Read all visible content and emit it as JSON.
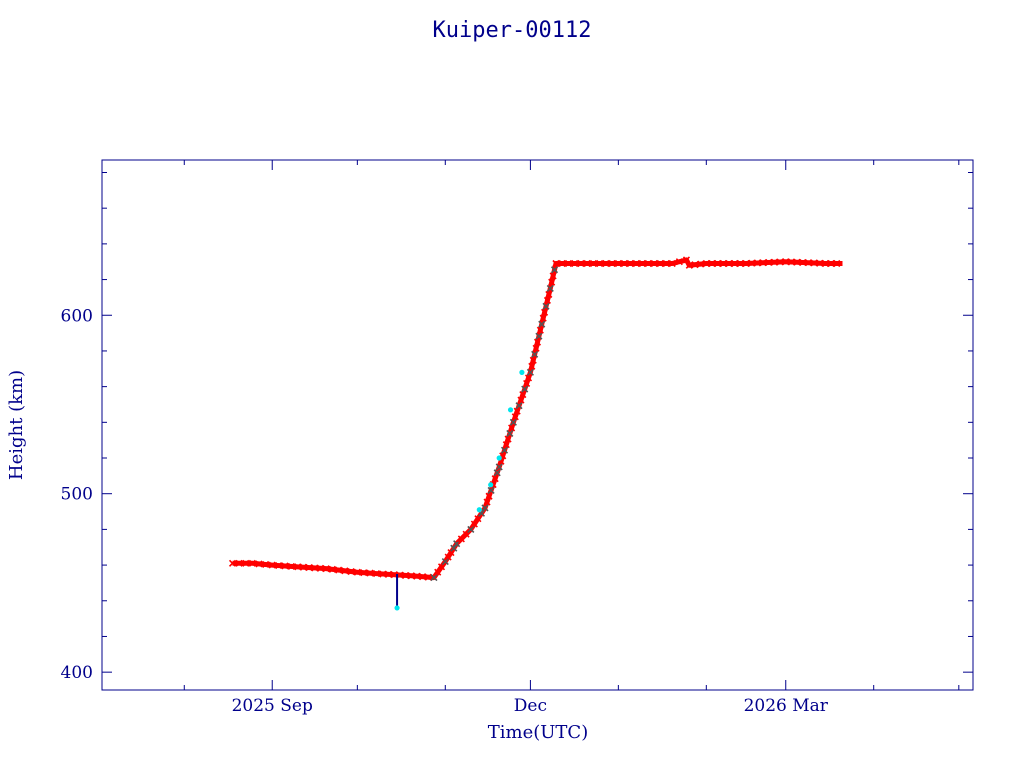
{
  "chart_data": {
    "type": "scatter",
    "title": "Kuiper-00112",
    "xlabel": "Time(UTC)",
    "ylabel": "Height (km)",
    "x_tick_labels": [
      "2025 Sep",
      "Dec",
      "2026 Mar"
    ],
    "y_tick_labels": [
      "400",
      "500",
      "600"
    ],
    "xlim": [
      "2025-07-03",
      "2026-05-06"
    ],
    "ylim": [
      390,
      687
    ],
    "x_ticks": [
      "2025-09-01",
      "2025-12-01",
      "2026-03-01"
    ],
    "y_ticks": [
      400,
      500,
      600
    ],
    "grid": false,
    "colors": {
      "axes": "#00008b",
      "text": "#00008b",
      "primary": "#ff0000",
      "secondary": "#00e5ee",
      "cross": "#555555"
    },
    "series": [
      {
        "style": "red-crosses",
        "x": [
          "2025-08-18",
          "2025-08-25",
          "2025-09-01",
          "2025-09-10",
          "2025-09-20",
          "2025-10-01",
          "2025-10-10",
          "2025-10-20",
          "2025-10-28",
          "2025-11-01",
          "2025-11-05",
          "2025-11-10",
          "2025-11-15",
          "2025-11-20",
          "2025-11-25",
          "2025-12-01",
          "2025-12-05",
          "2025-12-08",
          "2025-12-10",
          "2026-01-01",
          "2026-01-20",
          "2026-01-25",
          "2026-01-26",
          "2026-02-01",
          "2026-02-15",
          "2026-03-01",
          "2026-03-15",
          "2026-03-21"
        ],
        "y": [
          461,
          461,
          460,
          459,
          458,
          456,
          455,
          454,
          453,
          462,
          472,
          480,
          492,
          515,
          540,
          568,
          595,
          615,
          629,
          629,
          629,
          631,
          628,
          629,
          629,
          630,
          629,
          629
        ]
      },
      {
        "style": "cyan-dots",
        "x": [
          "2025-10-15",
          "2025-11-13",
          "2025-11-17",
          "2025-11-20",
          "2025-11-24",
          "2025-11-28"
        ],
        "y": [
          436,
          491,
          505,
          520,
          547,
          568
        ]
      }
    ]
  }
}
